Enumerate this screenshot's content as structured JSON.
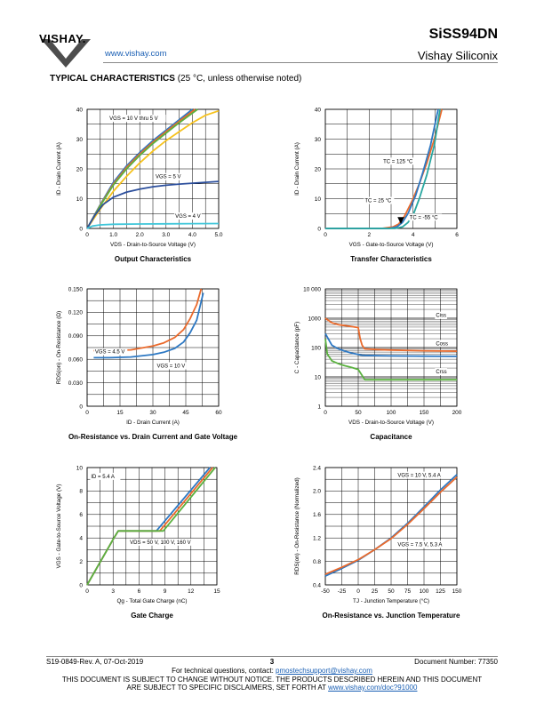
{
  "header": {
    "logo_text": "VISHAY.",
    "url": "www.vishay.com",
    "part_number": "SiSS94DN",
    "company": "Vishay Siliconix"
  },
  "section": {
    "title_bold": "TYPICAL CHARACTERISTICS",
    "title_rest": " (25 °C, unless otherwise noted)"
  },
  "colors": {
    "blue": "#2d78c3",
    "orange": "#ea6a2c",
    "green": "#5bb140",
    "yellow": "#f6c21e",
    "navy": "#2c4f9c",
    "cyan": "#3fc6d9",
    "teal": "#28a7a0"
  },
  "footer": {
    "doc_rev": "S19-0849-Rev. A, 07-Oct-2019",
    "page": "3",
    "doc_number": "Document Number: 77350",
    "contact_prefix": "For technical questions, contact: ",
    "contact_email": "pmostechsupport@vishay.com",
    "disclaimer1": "THIS DOCUMENT IS SUBJECT TO CHANGE WITHOUT NOTICE. THE PRODUCTS DESCRIBED HEREIN AND THIS DOCUMENT",
    "disclaimer2_prefix": "ARE SUBJECT TO SPECIFIC DISCLAIMERS, SET FORTH AT ",
    "disclaimer2_link": "www.vishay.com/doc?91000"
  },
  "chart_data": [
    {
      "type": "line",
      "title": "Output Characteristics",
      "xlabel": "VDS - Drain-to-Source Voltage (V)",
      "ylabel": "ID - Drain Current (A)",
      "xlim": [
        0,
        5.0
      ],
      "ylim": [
        0,
        40
      ],
      "xticks": [
        "0",
        "1.0",
        "2.0",
        "3.0",
        "4.0",
        "5.0"
      ],
      "yticks": [
        "0",
        "10",
        "20",
        "30",
        "40"
      ],
      "grid": true,
      "series": [
        {
          "name": "VGS = 10 V thru 5 V",
          "color": "blue",
          "x": [
            0,
            0.5,
            1.0,
            1.5,
            2.0,
            2.5,
            3.0,
            3.5,
            4.0
          ],
          "y": [
            0,
            8,
            15.5,
            21,
            25.5,
            29.5,
            33,
            36.5,
            40
          ]
        },
        {
          "color": "orange",
          "x": [
            0,
            0.5,
            1.0,
            1.5,
            2.0,
            2.5,
            3.0,
            3.5,
            4.1
          ],
          "y": [
            0,
            7.8,
            15,
            20.5,
            25,
            29,
            32.5,
            36,
            40
          ]
        },
        {
          "color": "green",
          "x": [
            0,
            0.5,
            1.0,
            1.5,
            2.0,
            2.5,
            3.0,
            3.5,
            4.2
          ],
          "y": [
            0,
            7.6,
            14.6,
            20,
            24.5,
            28.5,
            32,
            35.5,
            40
          ]
        },
        {
          "color": "yellow",
          "x": [
            0,
            0.5,
            1.0,
            1.5,
            2.0,
            2.5,
            3.0,
            3.5,
            4.0,
            4.5,
            5.0
          ],
          "y": [
            0,
            6.5,
            12.5,
            17.5,
            22,
            26,
            29.5,
            32.5,
            35.5,
            38,
            39.5
          ]
        },
        {
          "name": "VGS = 5 V",
          "color": "navy",
          "x": [
            0,
            0.3,
            0.6,
            1.0,
            1.5,
            2.0,
            2.5,
            3.0,
            3.5,
            4.0,
            4.5,
            5.0
          ],
          "y": [
            0,
            4.5,
            8,
            10.5,
            12.2,
            13.2,
            14,
            14.5,
            14.9,
            15.2,
            15.5,
            15.8
          ]
        },
        {
          "name": "VGS = 4 V",
          "color": "cyan",
          "x": [
            0,
            0.2,
            0.5,
            1.0,
            2.0,
            3.0,
            4.0,
            5.0
          ],
          "y": [
            0,
            0.8,
            1.2,
            1.4,
            1.5,
            1.55,
            1.6,
            1.65
          ]
        }
      ]
    },
    {
      "type": "line",
      "title": "Transfer Characteristics",
      "xlabel": "VGS - Gate-to-Source Voltage (V)",
      "ylabel": "ID - Drain Current (A)",
      "xlim": [
        0,
        7
      ],
      "ylim": [
        0,
        40
      ],
      "xticks": [
        "0",
        "2",
        "4",
        "6"
      ],
      "yticks": [
        "0",
        "10",
        "20",
        "30",
        "40"
      ],
      "grid": true,
      "series": [
        {
          "name": "TC = 125 °C",
          "color": "orange",
          "x": [
            0,
            3.0,
            3.6,
            3.9,
            4.2,
            4.6,
            5.0,
            5.4,
            5.8,
            6.2
          ],
          "y": [
            0,
            0,
            0.5,
            1.5,
            4,
            9,
            15,
            22,
            30,
            40
          ]
        },
        {
          "name": "TC = 25 °C",
          "color": "blue",
          "x": [
            0,
            3.4,
            3.8,
            4.1,
            4.4,
            4.8,
            5.2,
            5.6,
            6.0
          ],
          "y": [
            0,
            0,
            0.5,
            2,
            5,
            11,
            19,
            28,
            40
          ]
        },
        {
          "name": "TC = -55 °C",
          "color": "teal",
          "x": [
            0,
            3.7,
            4.1,
            4.4,
            4.7,
            5.0,
            5.4,
            5.8,
            6.1
          ],
          "y": [
            0,
            0,
            0.5,
            2,
            5,
            10,
            18,
            28,
            40
          ]
        }
      ]
    },
    {
      "type": "line",
      "title": "On-Resistance vs. Drain Current and Gate Voltage",
      "xlabel": "ID - Drain Current (A)",
      "ylabel": "RDS(on) - On-Resistance (Ω)",
      "xlim": [
        0,
        60
      ],
      "ylim": [
        0,
        0.15
      ],
      "xticks": [
        "0",
        "15",
        "30",
        "45",
        "60"
      ],
      "yticks": [
        "0",
        "0.030",
        "0.060",
        "0.090",
        "0.120",
        "0.150"
      ],
      "grid": true,
      "series": [
        {
          "name": "VGS = 4.5 V",
          "color": "orange",
          "x": [
            3,
            10,
            20,
            30,
            35,
            40,
            44,
            47,
            50,
            52
          ],
          "y": [
            0.071,
            0.071,
            0.072,
            0.077,
            0.081,
            0.088,
            0.098,
            0.112,
            0.13,
            0.15
          ]
        },
        {
          "name": "VGS = 10 V",
          "color": "blue",
          "x": [
            3,
            10,
            20,
            30,
            35,
            40,
            44,
            47,
            50,
            53
          ],
          "y": [
            0.062,
            0.062,
            0.063,
            0.066,
            0.069,
            0.074,
            0.082,
            0.094,
            0.11,
            0.145
          ]
        }
      ]
    },
    {
      "type": "line",
      "title": "Capacitance",
      "xlabel": "VDS - Drain-to-Source Voltage (V)",
      "ylabel": "C - Capacitance (pF)",
      "xlim": [
        0,
        200
      ],
      "ylim": [
        1,
        10000
      ],
      "yscale": "log",
      "xticks": [
        "0",
        "50",
        "100",
        "150",
        "200"
      ],
      "yticks": [
        "1",
        "10",
        "100",
        "1000",
        "10 000"
      ],
      "grid": true,
      "series": [
        {
          "name": "Ciss",
          "color": "orange",
          "x": [
            0,
            10,
            20,
            30,
            40,
            50,
            53,
            56,
            60,
            80,
            100,
            150,
            200
          ],
          "y": [
            1000,
            700,
            600,
            560,
            520,
            480,
            200,
            120,
            90,
            85,
            82,
            78,
            75
          ]
        },
        {
          "name": "Coss",
          "color": "blue",
          "x": [
            0,
            10,
            20,
            30,
            40,
            50,
            53,
            56,
            60,
            80,
            100,
            150,
            200
          ],
          "y": [
            300,
            120,
            90,
            75,
            65,
            58,
            56,
            55,
            54,
            53,
            52,
            51,
            50
          ]
        },
        {
          "name": "Crss",
          "color": "green",
          "x": [
            0,
            3,
            10,
            20,
            30,
            40,
            50,
            55,
            60,
            80,
            100,
            150,
            200
          ],
          "y": [
            200,
            60,
            35,
            28,
            24,
            21,
            18,
            12,
            8,
            8,
            8,
            8,
            8
          ]
        }
      ]
    },
    {
      "type": "line",
      "title": "Gate Charge",
      "xlabel": "Qg - Total Gate Charge (nC)",
      "ylabel": "VGS - Gate-to-Source Voltage (V)",
      "xlim": [
        0,
        15
      ],
      "ylim": [
        0,
        10
      ],
      "xticks": [
        "0",
        "3",
        "6",
        "9",
        "12",
        "15"
      ],
      "yticks": [
        "0",
        "2",
        "4",
        "6",
        "8",
        "10"
      ],
      "grid": true,
      "annotations": [
        "ID = 5.4 A",
        "VDS = 50 V, 100 V, 160 V"
      ],
      "series": [
        {
          "color": "blue",
          "x": [
            0,
            3.1,
            3.6,
            8.0,
            14.2
          ],
          "y": [
            0,
            4.0,
            4.6,
            4.6,
            10
          ]
        },
        {
          "color": "orange",
          "x": [
            0,
            3.1,
            3.6,
            8.4,
            14.5
          ],
          "y": [
            0,
            4.0,
            4.6,
            4.6,
            10
          ]
        },
        {
          "color": "green",
          "x": [
            0,
            3.1,
            3.6,
            8.8,
            14.8
          ],
          "y": [
            0,
            4.0,
            4.6,
            4.6,
            10
          ]
        }
      ]
    },
    {
      "type": "line",
      "title": "On-Resistance vs. Junction Temperature",
      "xlabel": "TJ - Junction Temperature (°C)",
      "ylabel": "RDS(on) - On-Resistance (Normalized)",
      "xlim": [
        -50,
        150
      ],
      "ylim": [
        0.4,
        2.4
      ],
      "xticks": [
        "-50",
        "-25",
        "0",
        "25",
        "50",
        "75",
        "100",
        "125",
        "150"
      ],
      "yticks": [
        "0.4",
        "0.8",
        "1.2",
        "1.6",
        "2.0",
        "2.4"
      ],
      "grid": true,
      "series": [
        {
          "name": "VGS = 10 V, 5.4 A",
          "color": "blue",
          "x": [
            -50,
            -25,
            0,
            25,
            50,
            75,
            100,
            125,
            150
          ],
          "y": [
            0.55,
            0.68,
            0.82,
            1.0,
            1.2,
            1.45,
            1.73,
            2.02,
            2.28
          ]
        },
        {
          "name": "VGS = 7.5 V, 5.3 A",
          "color": "orange",
          "x": [
            -50,
            -25,
            0,
            25,
            50,
            75,
            100,
            125,
            150
          ],
          "y": [
            0.58,
            0.7,
            0.83,
            1.0,
            1.19,
            1.43,
            1.7,
            1.98,
            2.24
          ]
        }
      ]
    }
  ]
}
